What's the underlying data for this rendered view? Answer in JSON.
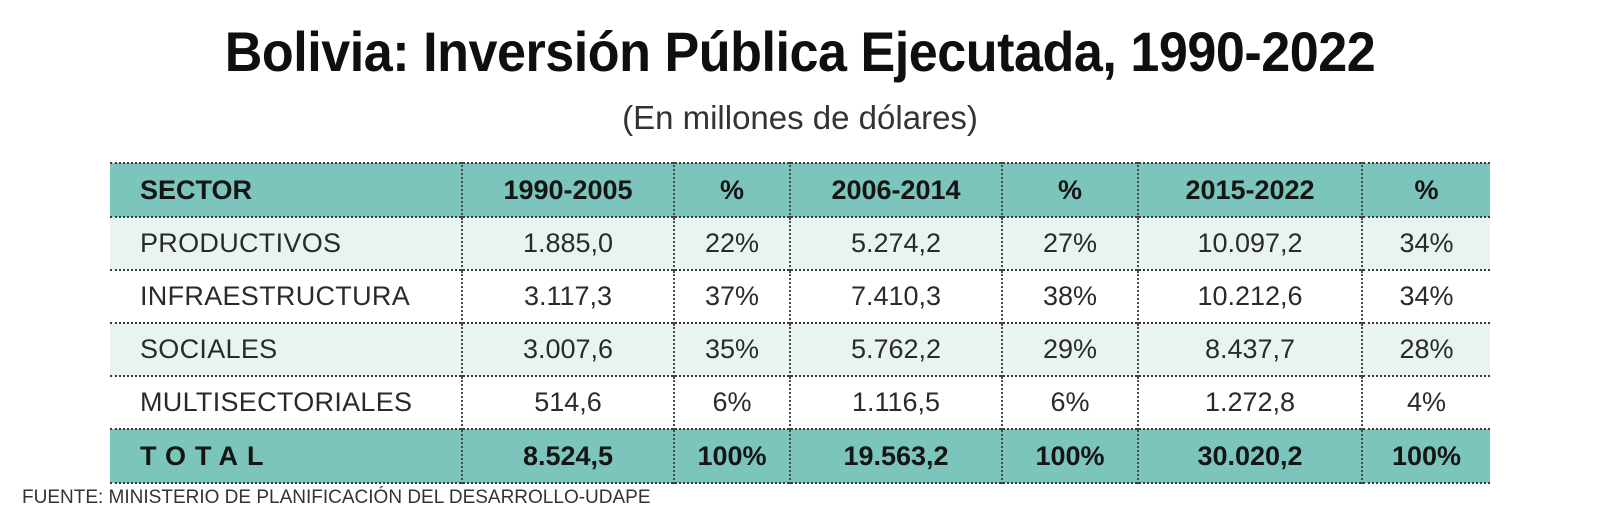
{
  "title": "Bolivia: Inversión Pública Ejecutada, 1990-2022",
  "subtitle": "(En millones de dólares)",
  "table": {
    "headers": [
      "SECTOR",
      "1990-2005",
      "%",
      "2006-2014",
      "%",
      "2015-2022",
      "%"
    ],
    "rows": [
      [
        "PRODUCTIVOS",
        "1.885,0",
        "22%",
        "5.274,2",
        "27%",
        "10.097,2",
        "34%"
      ],
      [
        "INFRAESTRUCTURA",
        "3.117,3",
        "37%",
        "7.410,3",
        "38%",
        "10.212,6",
        "34%"
      ],
      [
        "SOCIALES",
        "3.007,6",
        "35%",
        "5.762,2",
        "29%",
        "8.437,7",
        "28%"
      ],
      [
        "MULTISECTORIALES",
        "514,6",
        "6%",
        "1.116,5",
        "6%",
        "1.272,8",
        "4%"
      ]
    ],
    "total": [
      "TOTAL",
      "8.524,5",
      "100%",
      "19.563,2",
      "100%",
      "30.020,2",
      "100%"
    ]
  },
  "source": "FUENTE: MINISTERIO DE PLANIFICACIÓN DEL DESARROLLO-UDAPE",
  "colors": {
    "header_fill": "#7cc5bd",
    "shaded_row_fill": "#e9f4f2"
  }
}
